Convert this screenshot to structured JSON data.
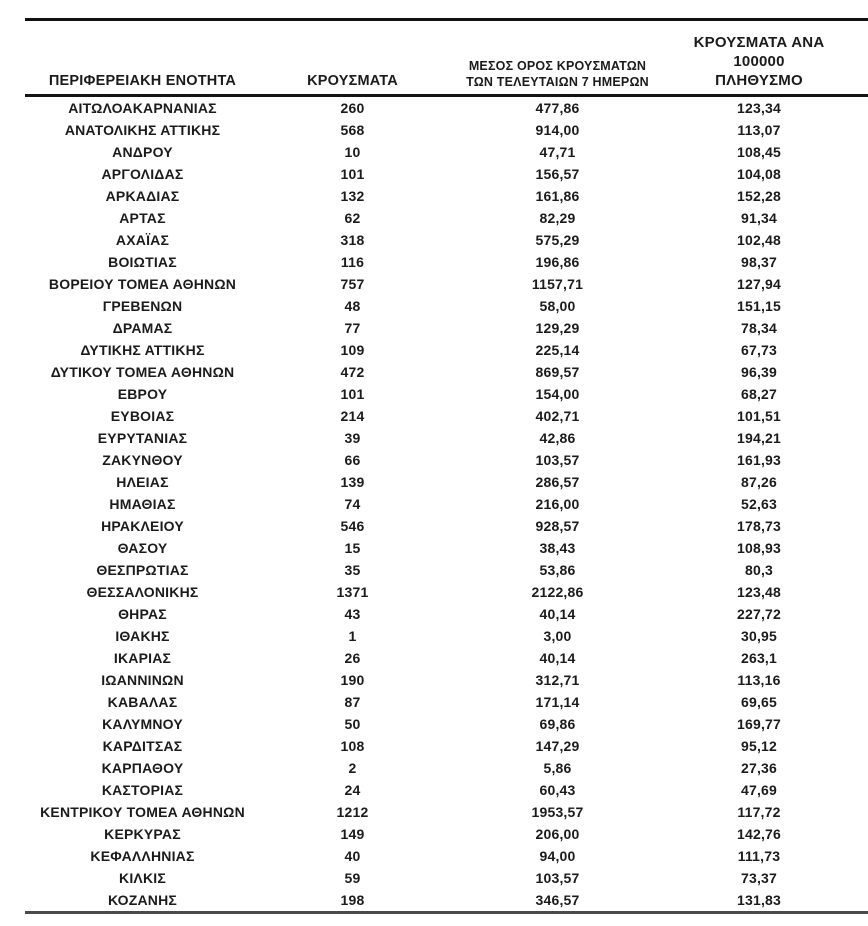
{
  "colors": {
    "background": "#ffffff",
    "text": "#1b1b1b",
    "rule_top": "#101010",
    "rule_header": "#141414",
    "rule_bottom": "#4a4a4a"
  },
  "table": {
    "columns": [
      {
        "label": "ΠΕΡΙΦΕΡΕΙΑΚΗ ΕΝΟΤΗΤΑ"
      },
      {
        "label": "ΚΡΟΥΣΜΑΤΑ"
      },
      {
        "label": "ΜΕΣΟΣ ΟΡΟΣ ΚΡΟΥΣΜΑΤΩΝ\nΤΩΝ ΤΕΛΕΥΤΑΙΩΝ 7 ΗΜΕΡΩΝ"
      },
      {
        "label": "ΚΡΟΥΣΜΑΤΑ ΑΝΑ 100000\nΠΛΗΘΥΣΜΟ"
      }
    ],
    "rows": [
      [
        "ΑΙΤΩΛΟΑΚΑΡΝΑΝΙΑΣ",
        "260",
        "477,86",
        "123,34"
      ],
      [
        "ΑΝΑΤΟΛΙΚΗΣ ΑΤΤΙΚΗΣ",
        "568",
        "914,00",
        "113,07"
      ],
      [
        "ΑΝΔΡΟΥ",
        "10",
        "47,71",
        "108,45"
      ],
      [
        "ΑΡΓΟΛΙΔΑΣ",
        "101",
        "156,57",
        "104,08"
      ],
      [
        "ΑΡΚΑΔΙΑΣ",
        "132",
        "161,86",
        "152,28"
      ],
      [
        "ΑΡΤΑΣ",
        "62",
        "82,29",
        "91,34"
      ],
      [
        "ΑΧΑΪΑΣ",
        "318",
        "575,29",
        "102,48"
      ],
      [
        "ΒΟΙΩΤΙΑΣ",
        "116",
        "196,86",
        "98,37"
      ],
      [
        "ΒΟΡΕΙΟΥ ΤΟΜΕΑ ΑΘΗΝΩΝ",
        "757",
        "1157,71",
        "127,94"
      ],
      [
        "ΓΡΕΒΕΝΩΝ",
        "48",
        "58,00",
        "151,15"
      ],
      [
        "ΔΡΑΜΑΣ",
        "77",
        "129,29",
        "78,34"
      ],
      [
        "ΔΥΤΙΚΗΣ ΑΤΤΙΚΗΣ",
        "109",
        "225,14",
        "67,73"
      ],
      [
        "ΔΥΤΙΚΟΥ ΤΟΜΕΑ ΑΘΗΝΩΝ",
        "472",
        "869,57",
        "96,39"
      ],
      [
        "ΕΒΡΟΥ",
        "101",
        "154,00",
        "68,27"
      ],
      [
        "ΕΥΒΟΙΑΣ",
        "214",
        "402,71",
        "101,51"
      ],
      [
        "ΕΥΡΥΤΑΝΙΑΣ",
        "39",
        "42,86",
        "194,21"
      ],
      [
        "ΖΑΚΥΝΘΟΥ",
        "66",
        "103,57",
        "161,93"
      ],
      [
        "ΗΛΕΙΑΣ",
        "139",
        "286,57",
        "87,26"
      ],
      [
        "ΗΜΑΘΙΑΣ",
        "74",
        "216,00",
        "52,63"
      ],
      [
        "ΗΡΑΚΛΕΙΟΥ",
        "546",
        "928,57",
        "178,73"
      ],
      [
        "ΘΑΣΟΥ",
        "15",
        "38,43",
        "108,93"
      ],
      [
        "ΘΕΣΠΡΩΤΙΑΣ",
        "35",
        "53,86",
        "80,3"
      ],
      [
        "ΘΕΣΣΑΛΟΝΙΚΗΣ",
        "1371",
        "2122,86",
        "123,48"
      ],
      [
        "ΘΗΡΑΣ",
        "43",
        "40,14",
        "227,72"
      ],
      [
        "ΙΘΑΚΗΣ",
        "1",
        "3,00",
        "30,95"
      ],
      [
        "ΙΚΑΡΙΑΣ",
        "26",
        "40,14",
        "263,1"
      ],
      [
        "ΙΩΑΝΝΙΝΩΝ",
        "190",
        "312,71",
        "113,16"
      ],
      [
        "ΚΑΒΑΛΑΣ",
        "87",
        "171,14",
        "69,65"
      ],
      [
        "ΚΑΛΥΜΝΟΥ",
        "50",
        "69,86",
        "169,77"
      ],
      [
        "ΚΑΡΔΙΤΣΑΣ",
        "108",
        "147,29",
        "95,12"
      ],
      [
        "ΚΑΡΠΑΘΟΥ",
        "2",
        "5,86",
        "27,36"
      ],
      [
        "ΚΑΣΤΟΡΙΑΣ",
        "24",
        "60,43",
        "47,69"
      ],
      [
        "ΚΕΝΤΡΙΚΟΥ ΤΟΜΕΑ ΑΘΗΝΩΝ",
        "1212",
        "1953,57",
        "117,72"
      ],
      [
        "ΚΕΡΚΥΡΑΣ",
        "149",
        "206,00",
        "142,76"
      ],
      [
        "ΚΕΦΑΛΛΗΝΙΑΣ",
        "40",
        "94,00",
        "111,73"
      ],
      [
        "ΚΙΛΚΙΣ",
        "59",
        "103,57",
        "73,37"
      ],
      [
        "ΚΟΖΑΝΗΣ",
        "198",
        "346,57",
        "131,83"
      ]
    ]
  }
}
